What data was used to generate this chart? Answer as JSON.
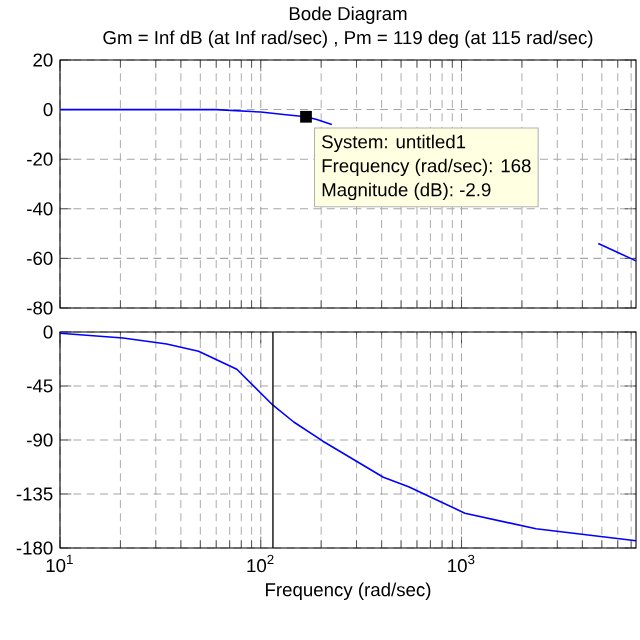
{
  "chart_data": [
    {
      "type": "line",
      "title": "Bode Diagram",
      "subtitle": "Gm = Inf dB (at Inf rad/sec) , Pm = 119 deg (at 115 rad/sec)",
      "log": "x",
      "grid": true,
      "tick_labels": "y",
      "x": [
        10,
        20,
        30,
        60,
        100,
        130,
        168,
        190,
        226,
        2900,
        4800,
        7400
      ],
      "series": [
        {
          "color": "#0000ff",
          "values": [
            0,
            0,
            0,
            0,
            -1,
            -2,
            -2.9,
            -4,
            -6,
            null,
            -54,
            -61
          ]
        }
      ],
      "xlim": [
        10,
        7400
      ],
      "xticks": [
        10,
        100,
        1000
      ],
      "ylim": [
        -80,
        20
      ],
      "yticks": [
        -80,
        -60,
        -40,
        -20,
        0,
        20
      ],
      "annotations": [
        {
          "text": "System: untitled1",
          "x": 168,
          "y": -2.9
        },
        "Frequency (rad/sec): 168",
        "Magnitude (dB): -2.9"
      ]
    },
    {
      "type": "line",
      "xlabel": "Frequency (rad/sec)",
      "log": "x",
      "grid": true,
      "x": [
        10,
        20.6,
        34,
        49,
        76,
        115,
        146,
        204,
        408,
        545,
        1040,
        2350,
        7400
      ],
      "series": [
        {
          "color": "#0000ff",
          "values": [
            -1,
            -5,
            -10,
            -16,
            -31,
            -61,
            -75,
            -91,
            -121,
            -129,
            -151,
            -164,
            -174
          ]
        }
      ],
      "xlim": [
        10,
        7400
      ],
      "xticks": [
        {
          "value": 10,
          "label": "10$^{1}$"
        },
        {
          "value": 100,
          "label": "10$^{2}$"
        },
        {
          "value": 1000,
          "label": "10$^{3}$"
        }
      ],
      "ylim": [
        -180,
        0
      ],
      "yticks": [
        -180,
        -135,
        -90,
        -45,
        0
      ],
      "ref_lines": [
        {
          "axis": "x",
          "value": 115,
          "color": "#000000"
        }
      ]
    }
  ]
}
